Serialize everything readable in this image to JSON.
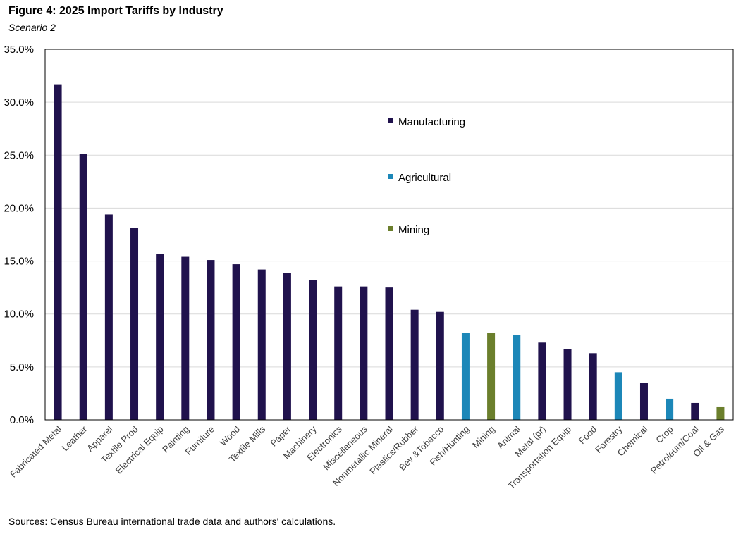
{
  "title": "Figure 4: 2025 Import Tariffs by Industry",
  "subtitle": "Scenario 2",
  "source": "Sources: Census Bureau international trade data and authors' calculations.",
  "colors": {
    "Manufacturing": "#20124d",
    "Agricultural": "#1c87b8",
    "Mining": "#6b7f2c"
  },
  "chart_data": {
    "type": "bar",
    "title": "2025 Import Tariffs by Industry",
    "xlabel": "",
    "ylabel": "",
    "ylim": [
      0,
      35
    ],
    "yticks": [
      0,
      5,
      10,
      15,
      20,
      25,
      30,
      35
    ],
    "ytick_labels": [
      "0.0%",
      "5.0%",
      "10.0%",
      "15.0%",
      "20.0%",
      "25.0%",
      "30.0%",
      "35.0%"
    ],
    "grid": true,
    "legend_position": "upper-center",
    "legend": [
      "Manufacturing",
      "Agricultural",
      "Mining"
    ],
    "categories": [
      "Fabricated Metal",
      "Leather",
      "Apparel",
      "Textile Prod",
      "Electrical Equip",
      "Painting",
      "Furniture",
      "Wood",
      "Textile Mills",
      "Paper",
      "Machinery",
      "Electronics",
      "Miscellaneous",
      "Nonmetallic Mineral",
      "Plastics/Rubber",
      "Bev &Tobacco",
      "Fish/Hunting",
      "Mining",
      "Animal",
      "Metal (pr)",
      "Transportation Equip",
      "Food",
      "Forestry",
      "Chemical",
      "Crop",
      "Petroleum/Coal",
      "Oil & Gas"
    ],
    "values": [
      31.7,
      25.1,
      19.4,
      18.1,
      15.7,
      15.4,
      15.1,
      14.7,
      14.2,
      13.9,
      13.2,
      12.6,
      12.6,
      12.5,
      10.4,
      10.2,
      8.2,
      8.2,
      8.0,
      7.3,
      6.7,
      6.3,
      4.5,
      3.5,
      2.0,
      1.6,
      1.2
    ],
    "groups": [
      "Manufacturing",
      "Manufacturing",
      "Manufacturing",
      "Manufacturing",
      "Manufacturing",
      "Manufacturing",
      "Manufacturing",
      "Manufacturing",
      "Manufacturing",
      "Manufacturing",
      "Manufacturing",
      "Manufacturing",
      "Manufacturing",
      "Manufacturing",
      "Manufacturing",
      "Manufacturing",
      "Agricultural",
      "Mining",
      "Agricultural",
      "Manufacturing",
      "Manufacturing",
      "Manufacturing",
      "Agricultural",
      "Manufacturing",
      "Agricultural",
      "Manufacturing",
      "Mining"
    ]
  }
}
